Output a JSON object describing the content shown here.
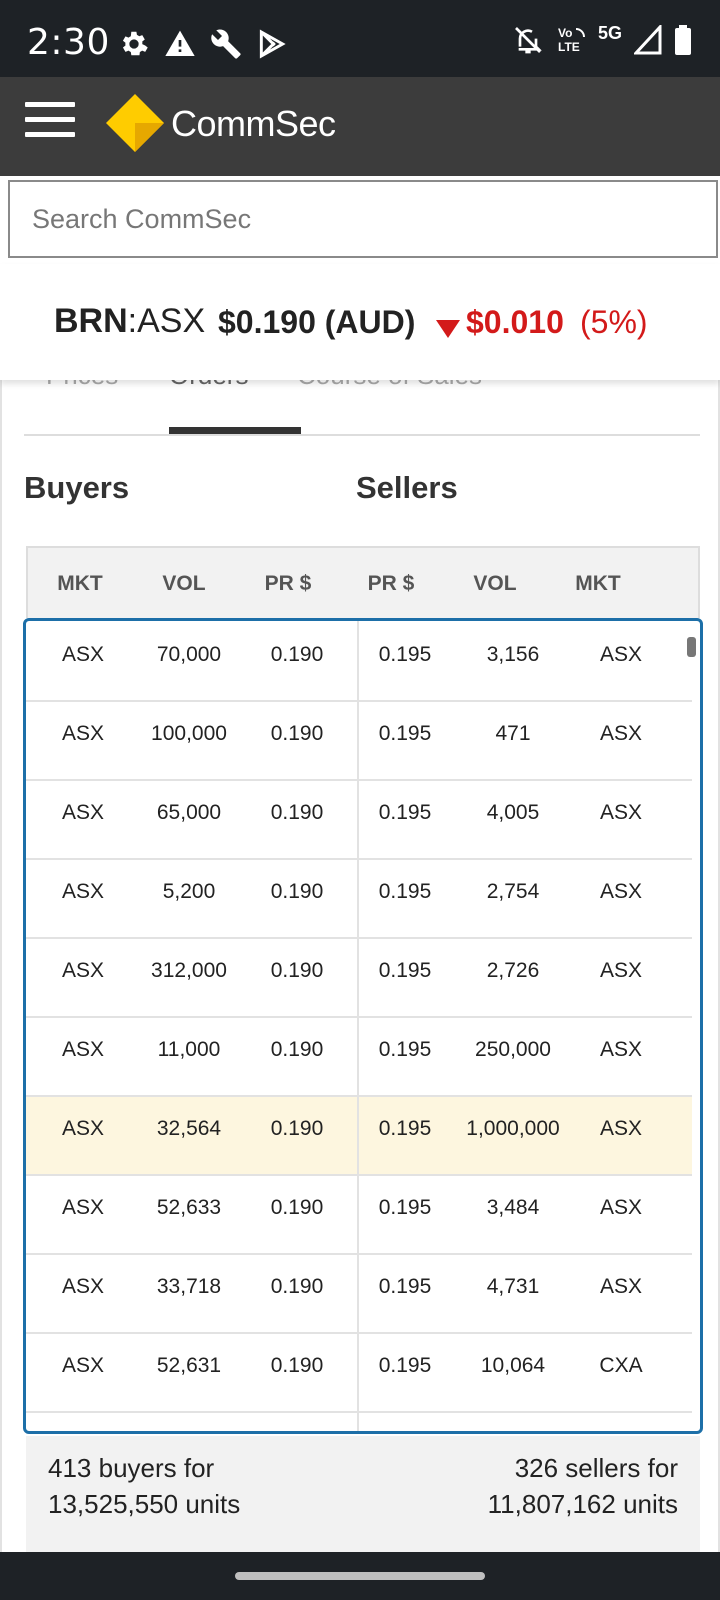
{
  "status_bar": {
    "time": "2:30",
    "left_icons": [
      "gear-icon",
      "alert-triangle-icon",
      "wrench-icon",
      "play-store-icon"
    ],
    "network_label": "5G",
    "volte_label": "Vo LTE",
    "right_icons": [
      "bell-off-icon",
      "volte-icon",
      "signal-icon",
      "battery-icon"
    ]
  },
  "app_bar": {
    "brand": "CommSec",
    "logo_color": "#ffcc00"
  },
  "search": {
    "placeholder": "Search CommSec",
    "value": ""
  },
  "quote": {
    "code": "BRN",
    "exchange": ":ASX",
    "price": "$0.190 (AUD)",
    "change": "$0.010",
    "change_pct": "(5%)",
    "change_color": "#d31a1a"
  },
  "tabs": [
    {
      "label": "Prices"
    },
    {
      "label": "Orders"
    },
    {
      "label": "Course of Sales"
    }
  ],
  "depth": {
    "buyers_label": "Buyers",
    "sellers_label": "Sellers",
    "headers": [
      "MKT",
      "VOL",
      "PR $",
      "PR $",
      "VOL",
      "MKT"
    ],
    "rows": [
      {
        "bmkt": "ASX",
        "bvol": "70,000",
        "bpr": "0.190",
        "spr": "0.195",
        "svol": "3,156",
        "smkt": "ASX"
      },
      {
        "bmkt": "ASX",
        "bvol": "100,000",
        "bpr": "0.190",
        "spr": "0.195",
        "svol": "471",
        "smkt": "ASX"
      },
      {
        "bmkt": "ASX",
        "bvol": "65,000",
        "bpr": "0.190",
        "spr": "0.195",
        "svol": "4,005",
        "smkt": "ASX"
      },
      {
        "bmkt": "ASX",
        "bvol": "5,200",
        "bpr": "0.190",
        "spr": "0.195",
        "svol": "2,754",
        "smkt": "ASX"
      },
      {
        "bmkt": "ASX",
        "bvol": "312,000",
        "bpr": "0.190",
        "spr": "0.195",
        "svol": "2,726",
        "smkt": "ASX"
      },
      {
        "bmkt": "ASX",
        "bvol": "11,000",
        "bpr": "0.190",
        "spr": "0.195",
        "svol": "250,000",
        "smkt": "ASX"
      },
      {
        "bmkt": "ASX",
        "bvol": "32,564",
        "bpr": "0.190",
        "spr": "0.195",
        "svol": "1,000,000",
        "smkt": "ASX"
      },
      {
        "bmkt": "ASX",
        "bvol": "52,633",
        "bpr": "0.190",
        "spr": "0.195",
        "svol": "3,484",
        "smkt": "ASX"
      },
      {
        "bmkt": "ASX",
        "bvol": "33,718",
        "bpr": "0.190",
        "spr": "0.195",
        "svol": "4,731",
        "smkt": "ASX"
      },
      {
        "bmkt": "ASX",
        "bvol": "52,631",
        "bpr": "0.190",
        "spr": "0.195",
        "svol": "10,064",
        "smkt": "CXA"
      }
    ],
    "highlight_color": "#fdf6df",
    "frame_color": "#1d6fa8"
  },
  "summary": {
    "buyers_line1": "413 buyers for",
    "buyers_line2": "13,525,550 units",
    "sellers_line1": "326 sellers for",
    "sellers_line2": "11,807,162 units"
  }
}
